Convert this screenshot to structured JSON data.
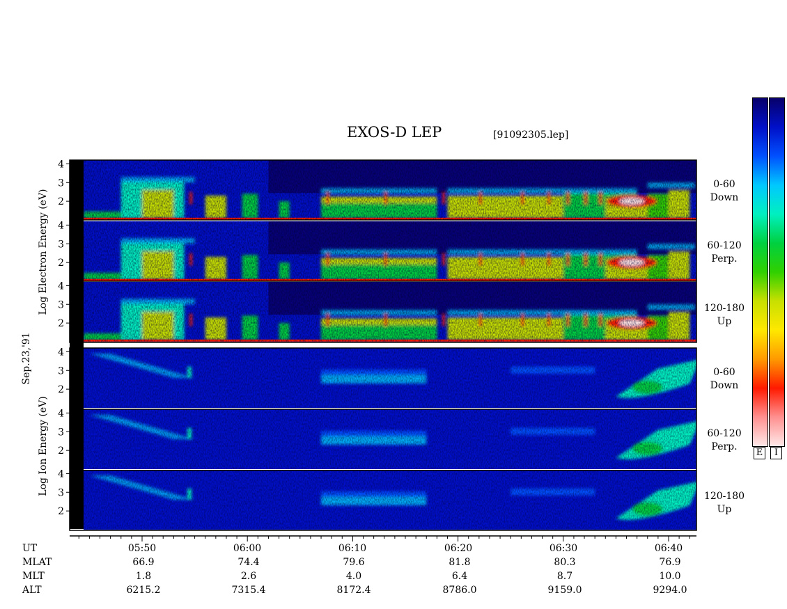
{
  "title": "EXOS-D LEP",
  "subtitle": "[91092305.lep]",
  "date_label": "Sep.23,'91",
  "electron_axis_label": "Log Electron Energy (eV)",
  "ion_axis_label": "Log Ion Energy (eV)",
  "panels": [
    {
      "species": "electron",
      "range": "0-60",
      "dir": "Down"
    },
    {
      "species": "electron",
      "range": "60-120",
      "dir": "Perp."
    },
    {
      "species": "electron",
      "range": "120-180",
      "dir": "Up"
    },
    {
      "species": "ion",
      "range": "0-60",
      "dir": "Down"
    },
    {
      "species": "ion",
      "range": "60-120",
      "dir": "Perp."
    },
    {
      "species": "ion",
      "range": "120-180",
      "dir": "Up"
    }
  ],
  "colorbar_labels": {
    "electron": "E",
    "ion": "I"
  },
  "colors": {
    "scale": [
      "#08006a",
      "#0010c8",
      "#0050ff",
      "#00c8ff",
      "#00f0c0",
      "#00d040",
      "#30d000",
      "#c8e000",
      "#ffe800",
      "#ff9a00",
      "#ff1a00",
      "#ff9090",
      "#ffe8e8"
    ]
  },
  "rows": [
    {
      "name": "UT",
      "values": [
        "05:50",
        "06:00",
        "06:10",
        "06:20",
        "06:30",
        "06:40"
      ]
    },
    {
      "name": "MLAT",
      "values": [
        "66.9",
        "74.4",
        "79.6",
        "81.8",
        "80.3",
        "76.9"
      ]
    },
    {
      "name": "MLT",
      "values": [
        "1.8",
        "2.6",
        "4.0",
        "6.4",
        "8.7",
        "10.0"
      ]
    },
    {
      "name": "ALT",
      "values": [
        "6215.2",
        "7315.4",
        "8172.4",
        "8786.0",
        "9159.0",
        "9294.0"
      ]
    }
  ],
  "chart_data": {
    "type": "heatmap",
    "title": "EXOS-D LEP",
    "subtitle": "[91092305.lep]",
    "xlabel": "UT",
    "x_ticks": [
      "05:50",
      "06:00",
      "06:10",
      "06:20",
      "06:30",
      "06:40"
    ],
    "xlim": [
      "05:43",
      "06:43"
    ],
    "y_ticks": [
      2,
      3,
      4
    ],
    "ylim": [
      1,
      4.2
    ],
    "y_scale": "log10 energy (eV)",
    "series": [
      {
        "name": "Electron 0-60 Down",
        "range": "0-60",
        "dir": "Down"
      },
      {
        "name": "Electron 60-120 Perp.",
        "range": "60-120",
        "dir": "Perp."
      },
      {
        "name": "Electron 120-180 Up",
        "range": "120-180",
        "dir": "Up"
      },
      {
        "name": "Ion 0-60 Down",
        "range": "0-60",
        "dir": "Down"
      },
      {
        "name": "Ion 60-120 Perp.",
        "range": "60-120",
        "dir": "Perp."
      },
      {
        "name": "Ion 120-180 Up",
        "range": "120-180",
        "dir": "Up"
      }
    ],
    "ephemeris": {
      "UT": [
        "05:50",
        "06:00",
        "06:10",
        "06:20",
        "06:30",
        "06:40"
      ],
      "MLAT": [
        66.9,
        74.4,
        79.6,
        81.8,
        80.3,
        76.9
      ],
      "MLT": [
        1.8,
        2.6,
        4.0,
        6.4,
        8.7,
        10.0
      ],
      "ALT": [
        6215.2,
        7315.4,
        8172.4,
        8786.0,
        9159.0,
        9294.0
      ]
    }
  }
}
